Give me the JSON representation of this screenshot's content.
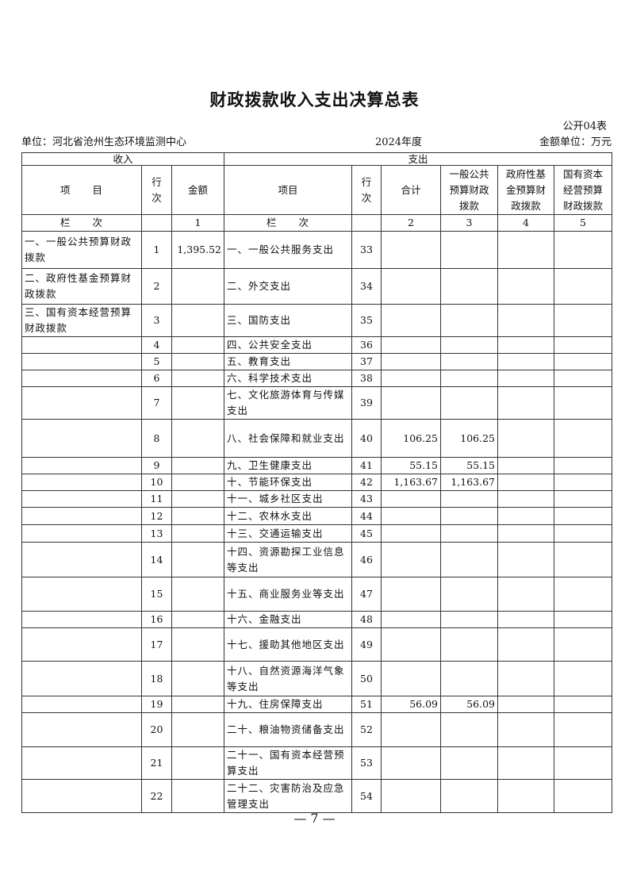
{
  "title": "财政拨款收入支出决算总表",
  "form_no": "公开04表",
  "unit": "单位：河北省沧州生态环境监测中心",
  "year": "2024年度",
  "currency_unit": "金额单位：万元",
  "headers": {
    "income": "收入",
    "expense": "支出",
    "item": "项　　目",
    "row_no": "行次",
    "amount": "金额",
    "exp_item": "项目",
    "exp_row_no": "行次",
    "total": "合计",
    "general": "一般公共预算财政拨款",
    "gov_fund": "政府性基金预算财政拨款",
    "state_capital": "国有资本经营预算财政拨款",
    "column_label": "栏　　次",
    "col1": "1",
    "exp_column_label": "栏　　次",
    "col2": "2",
    "col3": "3",
    "col4": "4",
    "col5": "5"
  },
  "rows": [
    {
      "in_item": "一、一般公共预算财政拨款",
      "in_no": "1",
      "in_amt": "1,395.52",
      "ex_item": "一、一般公共服务支出",
      "ex_no": "33",
      "total": "",
      "general": "",
      "fund": "",
      "capital": ""
    },
    {
      "in_item": "二、政府性基金预算财政拨款",
      "in_no": "2",
      "in_amt": "",
      "ex_item": "二、外交支出",
      "ex_no": "34",
      "total": "",
      "general": "",
      "fund": "",
      "capital": ""
    },
    {
      "in_item": "三、国有资本经营预算财政拨款",
      "in_no": "3",
      "in_amt": "",
      "ex_item": "三、国防支出",
      "ex_no": "35",
      "total": "",
      "general": "",
      "fund": "",
      "capital": ""
    },
    {
      "in_item": "",
      "in_no": "4",
      "in_amt": "",
      "ex_item": "四、公共安全支出",
      "ex_no": "36",
      "total": "",
      "general": "",
      "fund": "",
      "capital": ""
    },
    {
      "in_item": "",
      "in_no": "5",
      "in_amt": "",
      "ex_item": "五、教育支出",
      "ex_no": "37",
      "total": "",
      "general": "",
      "fund": "",
      "capital": ""
    },
    {
      "in_item": "",
      "in_no": "6",
      "in_amt": "",
      "ex_item": "六、科学技术支出",
      "ex_no": "38",
      "total": "",
      "general": "",
      "fund": "",
      "capital": ""
    },
    {
      "in_item": "",
      "in_no": "7",
      "in_amt": "",
      "ex_item": "七、文化旅游体育与传媒支出",
      "ex_no": "39",
      "total": "",
      "general": "",
      "fund": "",
      "capital": ""
    },
    {
      "in_item": "",
      "in_no": "8",
      "in_amt": "",
      "ex_item": "八、社会保障和就业支出",
      "ex_no": "40",
      "total": "106.25",
      "general": "106.25",
      "fund": "",
      "capital": ""
    },
    {
      "in_item": "",
      "in_no": "9",
      "in_amt": "",
      "ex_item": "九、卫生健康支出",
      "ex_no": "41",
      "total": "55.15",
      "general": "55.15",
      "fund": "",
      "capital": ""
    },
    {
      "in_item": "",
      "in_no": "10",
      "in_amt": "",
      "ex_item": "十、节能环保支出",
      "ex_no": "42",
      "total": "1,163.67",
      "general": "1,163.67",
      "fund": "",
      "capital": ""
    },
    {
      "in_item": "",
      "in_no": "11",
      "in_amt": "",
      "ex_item": "十一、城乡社区支出",
      "ex_no": "43",
      "total": "",
      "general": "",
      "fund": "",
      "capital": ""
    },
    {
      "in_item": "",
      "in_no": "12",
      "in_amt": "",
      "ex_item": "十二、农林水支出",
      "ex_no": "44",
      "total": "",
      "general": "",
      "fund": "",
      "capital": ""
    },
    {
      "in_item": "",
      "in_no": "13",
      "in_amt": "",
      "ex_item": "十三、交通运输支出",
      "ex_no": "45",
      "total": "",
      "general": "",
      "fund": "",
      "capital": ""
    },
    {
      "in_item": "",
      "in_no": "14",
      "in_amt": "",
      "ex_item": "十四、资源勘探工业信息等支出",
      "ex_no": "46",
      "total": "",
      "general": "",
      "fund": "",
      "capital": ""
    },
    {
      "in_item": "",
      "in_no": "15",
      "in_amt": "",
      "ex_item": "十五、商业服务业等支出",
      "ex_no": "47",
      "total": "",
      "general": "",
      "fund": "",
      "capital": ""
    },
    {
      "in_item": "",
      "in_no": "16",
      "in_amt": "",
      "ex_item": "十六、金融支出",
      "ex_no": "48",
      "total": "",
      "general": "",
      "fund": "",
      "capital": ""
    },
    {
      "in_item": "",
      "in_no": "17",
      "in_amt": "",
      "ex_item": "十七、援助其他地区支出",
      "ex_no": "49",
      "total": "",
      "general": "",
      "fund": "",
      "capital": ""
    },
    {
      "in_item": "",
      "in_no": "18",
      "in_amt": "",
      "ex_item": "十八、自然资源海洋气象等支出",
      "ex_no": "50",
      "total": "",
      "general": "",
      "fund": "",
      "capital": ""
    },
    {
      "in_item": "",
      "in_no": "19",
      "in_amt": "",
      "ex_item": "十九、住房保障支出",
      "ex_no": "51",
      "total": "56.09",
      "general": "56.09",
      "fund": "",
      "capital": ""
    },
    {
      "in_item": "",
      "in_no": "20",
      "in_amt": "",
      "ex_item": "二十、粮油物资储备支出",
      "ex_no": "52",
      "total": "",
      "general": "",
      "fund": "",
      "capital": ""
    },
    {
      "in_item": "",
      "in_no": "21",
      "in_amt": "",
      "ex_item": "二十一、国有资本经营预算支出",
      "ex_no": "53",
      "total": "",
      "general": "",
      "fund": "",
      "capital": ""
    },
    {
      "in_item": "",
      "in_no": "22",
      "in_amt": "",
      "ex_item": "二十二、灾害防治及应急管理支出",
      "ex_no": "54",
      "total": "",
      "general": "",
      "fund": "",
      "capital": ""
    }
  ],
  "page_number": "— 7 —"
}
